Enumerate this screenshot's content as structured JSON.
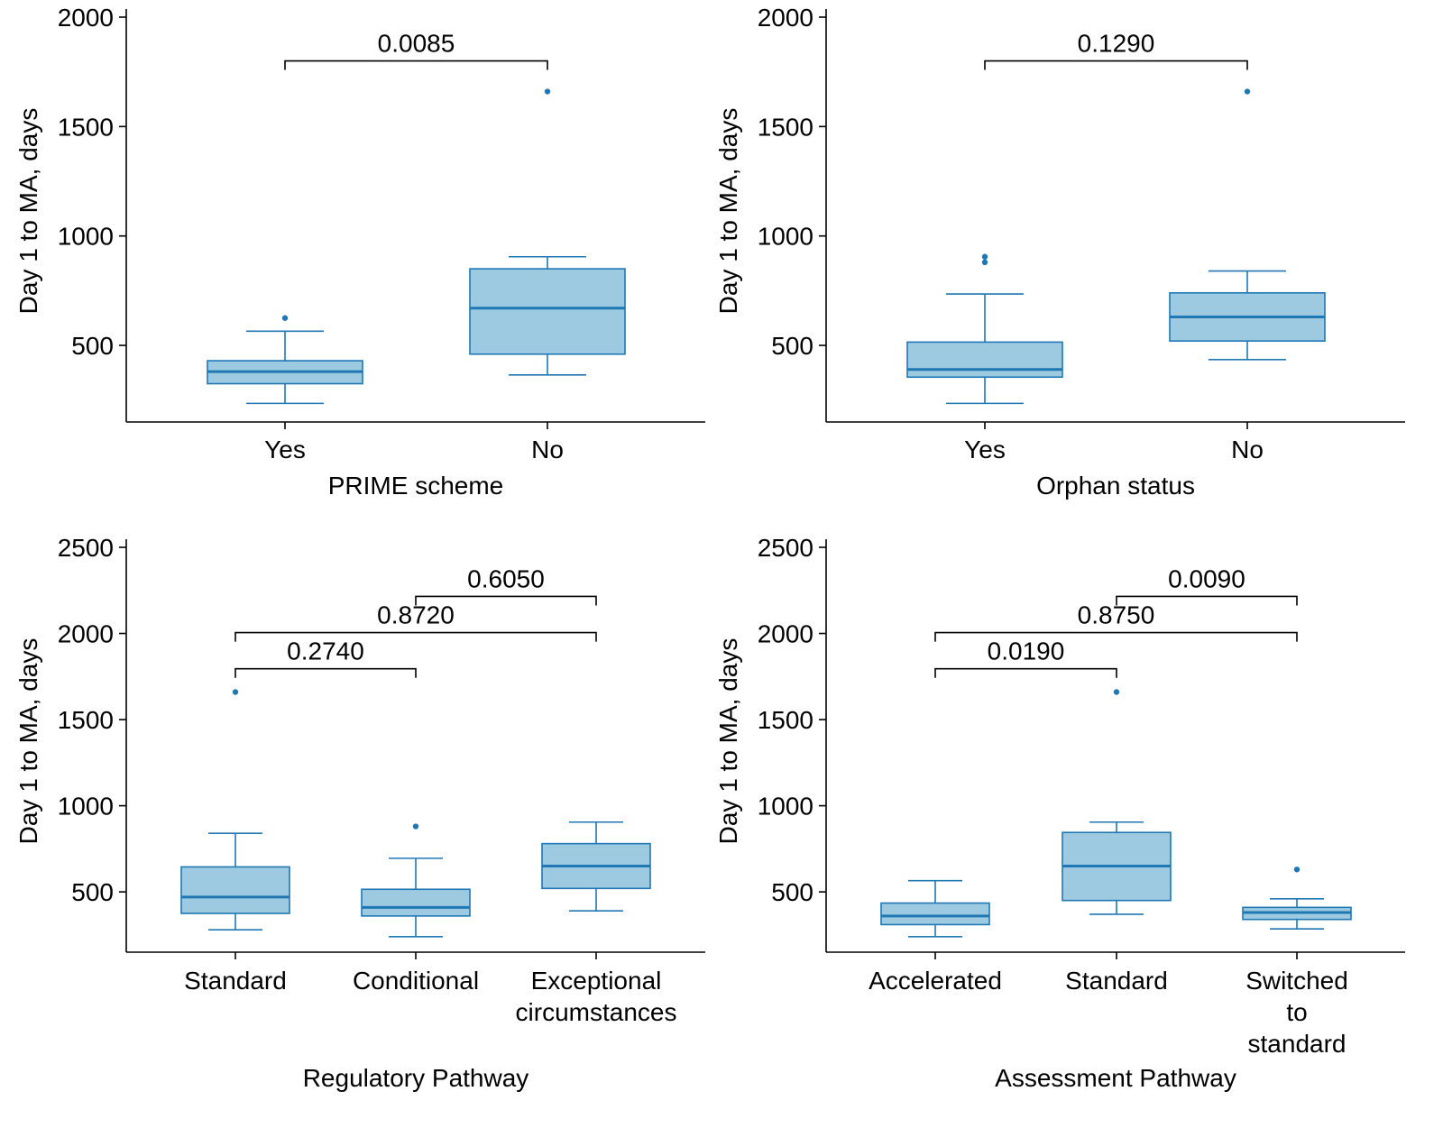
{
  "colors": {
    "box_fill": "#9ecae1",
    "box_stroke": "#1f78b4",
    "median": "#1f78b4",
    "outlier": "#1f78b4",
    "axis": "#000000",
    "background": "#ffffff"
  },
  "chart_data": [
    {
      "type": "boxplot",
      "xlabel": "PRIME scheme",
      "ylabel": "Day 1 to MA, days",
      "ylim": [
        150,
        2000
      ],
      "yticks": [
        500,
        1000,
        1500,
        2000
      ],
      "categories": [
        [
          "Yes"
        ],
        [
          "No"
        ]
      ],
      "boxes": [
        {
          "category": "Yes",
          "whisker_low": 235,
          "q1": 325,
          "median": 380,
          "q3": 430,
          "whisker_high": 565,
          "outliers": [
            625
          ]
        },
        {
          "category": "No",
          "whisker_low": 365,
          "q1": 460,
          "median": 670,
          "q3": 850,
          "whisker_high": 905,
          "outliers": [
            1660
          ]
        }
      ],
      "comparisons": [
        {
          "from": 0,
          "to": 1,
          "y": 1800,
          "label": "0.0085"
        }
      ]
    },
    {
      "type": "boxplot",
      "xlabel": "Orphan status",
      "ylabel": "Day 1 to MA, days",
      "ylim": [
        150,
        2000
      ],
      "yticks": [
        500,
        1000,
        1500,
        2000
      ],
      "categories": [
        [
          "Yes"
        ],
        [
          "No"
        ]
      ],
      "boxes": [
        {
          "category": "Yes",
          "whisker_low": 235,
          "q1": 355,
          "median": 390,
          "q3": 515,
          "whisker_high": 735,
          "outliers": [
            880,
            905
          ]
        },
        {
          "category": "No",
          "whisker_low": 435,
          "q1": 520,
          "median": 630,
          "q3": 740,
          "whisker_high": 840,
          "outliers": [
            1660
          ]
        }
      ],
      "comparisons": [
        {
          "from": 0,
          "to": 1,
          "y": 1800,
          "label": "0.1290"
        }
      ]
    },
    {
      "type": "boxplot",
      "xlabel": "Regulatory Pathway",
      "ylabel": "Day 1 to MA, days",
      "ylim": [
        150,
        2500
      ],
      "yticks": [
        500,
        1000,
        1500,
        2000,
        2500
      ],
      "categories": [
        [
          "Standard"
        ],
        [
          "Conditional"
        ],
        [
          "Exceptional",
          "circumstances"
        ]
      ],
      "boxes": [
        {
          "category": "Standard",
          "whisker_low": 280,
          "q1": 375,
          "median": 470,
          "q3": 645,
          "whisker_high": 840,
          "outliers": [
            1660
          ]
        },
        {
          "category": "Conditional",
          "whisker_low": 240,
          "q1": 360,
          "median": 410,
          "q3": 515,
          "whisker_high": 695,
          "outliers": [
            880
          ]
        },
        {
          "category": "Exceptional circumstances",
          "whisker_low": 390,
          "q1": 520,
          "median": 650,
          "q3": 780,
          "whisker_high": 905,
          "outliers": []
        }
      ],
      "comparisons": [
        {
          "from": 1,
          "to": 2,
          "y": 2215,
          "label": "0.6050"
        },
        {
          "from": 0,
          "to": 2,
          "y": 2005,
          "label": "0.8720"
        },
        {
          "from": 0,
          "to": 1,
          "y": 1795,
          "label": "0.2740"
        }
      ]
    },
    {
      "type": "boxplot",
      "xlabel": "Assessment Pathway",
      "ylabel": "Day 1 to MA, days",
      "ylim": [
        150,
        2500
      ],
      "yticks": [
        500,
        1000,
        1500,
        2000,
        2500
      ],
      "categories": [
        [
          "Accelerated"
        ],
        [
          "Standard"
        ],
        [
          "Switched",
          "to",
          "standard"
        ]
      ],
      "boxes": [
        {
          "category": "Accelerated",
          "whisker_low": 240,
          "q1": 310,
          "median": 360,
          "q3": 435,
          "whisker_high": 565,
          "outliers": []
        },
        {
          "category": "Standard",
          "whisker_low": 370,
          "q1": 450,
          "median": 650,
          "q3": 845,
          "whisker_high": 905,
          "outliers": [
            1660
          ]
        },
        {
          "category": "Switched to standard",
          "whisker_low": 285,
          "q1": 340,
          "median": 380,
          "q3": 410,
          "whisker_high": 460,
          "outliers": [
            630
          ]
        }
      ],
      "comparisons": [
        {
          "from": 1,
          "to": 2,
          "y": 2215,
          "label": "0.0090"
        },
        {
          "from": 0,
          "to": 2,
          "y": 2005,
          "label": "0.8750"
        },
        {
          "from": 0,
          "to": 1,
          "y": 1795,
          "label": "0.0190"
        }
      ]
    }
  ]
}
